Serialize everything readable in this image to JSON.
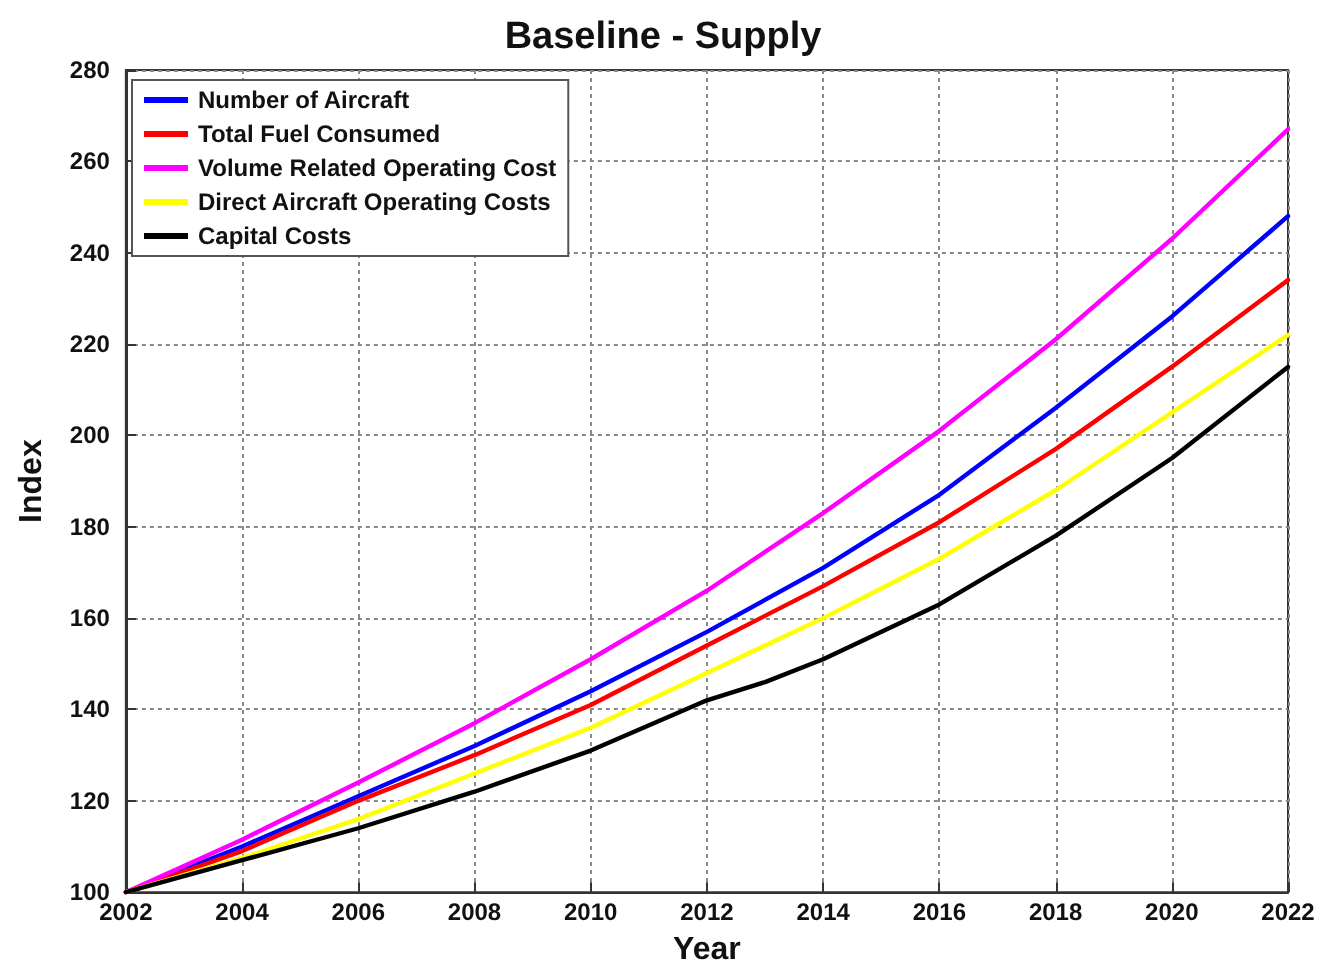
{
  "chart_data": {
    "type": "line",
    "title": "Baseline - Supply",
    "xlabel": "Year",
    "ylabel": "Index",
    "x": [
      2002,
      2004,
      2006,
      2008,
      2010,
      2012,
      2014,
      2016,
      2018,
      2020,
      2022
    ],
    "series": [
      {
        "name": "Number of Aircraft",
        "color": "#0000ff",
        "values": [
          100,
          110,
          121,
          132,
          144,
          157,
          171,
          187,
          206,
          226,
          248
        ]
      },
      {
        "name": "Total Fuel Consumed",
        "color": "#ff0000",
        "values": [
          100,
          109,
          120,
          130,
          141,
          154,
          167,
          181,
          197,
          215,
          234
        ]
      },
      {
        "name": "Volume Related Operating Cost",
        "color": "#ff00ff",
        "values": [
          100,
          111.5,
          124,
          137,
          151,
          166,
          183,
          201,
          221,
          243,
          267
        ]
      },
      {
        "name": "Direct Aircraft Operating Costs",
        "color": "#ffff00",
        "values": [
          100,
          107.5,
          116,
          126,
          136,
          148,
          160,
          173,
          188,
          205,
          222
        ]
      },
      {
        "name": "Capital Costs",
        "color": "#000000",
        "x": [
          2002,
          2004,
          2006,
          2008,
          2010,
          2012,
          2013,
          2014,
          2016,
          2018,
          2020,
          2022
        ],
        "values": [
          100,
          107,
          114,
          122,
          131,
          142,
          146,
          151,
          163,
          178,
          195,
          215
        ]
      }
    ],
    "xlim": [
      2002,
      2022
    ],
    "xticks": [
      2002,
      2004,
      2006,
      2008,
      2010,
      2012,
      2014,
      2016,
      2018,
      2020,
      2022
    ],
    "ylim": [
      100,
      280
    ],
    "yticks": [
      100,
      120,
      140,
      160,
      180,
      200,
      220,
      240,
      260,
      280
    ],
    "grid": true,
    "legend": "top left",
    "marker": "none",
    "line_style": "solid"
  }
}
